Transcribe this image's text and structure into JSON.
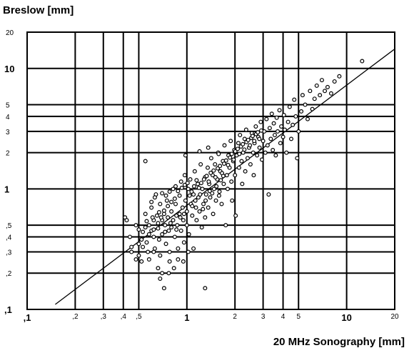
{
  "chart_data": {
    "type": "scatter",
    "title": "",
    "xlabel": "20 MHz Sonography [mm]",
    "ylabel": "Breslow [mm]",
    "xscale": "log",
    "yscale": "log",
    "xlim": [
      0.1,
      20
    ],
    "ylim": [
      0.1,
      20
    ],
    "grid": true,
    "x_ticks": [
      {
        "value": 0.1,
        "label": ",1",
        "major": true
      },
      {
        "value": 0.2,
        "label": ",2",
        "major": false
      },
      {
        "value": 0.3,
        "label": ",3",
        "major": false
      },
      {
        "value": 0.4,
        "label": ",4",
        "major": false
      },
      {
        "value": 0.5,
        "label": ",5",
        "major": false
      },
      {
        "value": 1,
        "label": "1",
        "major": true
      },
      {
        "value": 2,
        "label": "2",
        "major": false
      },
      {
        "value": 3,
        "label": "3",
        "major": false
      },
      {
        "value": 4,
        "label": "4",
        "major": false
      },
      {
        "value": 5,
        "label": "5",
        "major": false
      },
      {
        "value": 10,
        "label": "10",
        "major": true
      },
      {
        "value": 20,
        "label": "20",
        "major": false
      }
    ],
    "y_ticks": [
      {
        "value": 0.1,
        "label": ",1",
        "major": true
      },
      {
        "value": 0.2,
        "label": ",2",
        "major": false
      },
      {
        "value": 0.3,
        "label": ",3",
        "major": false
      },
      {
        "value": 0.4,
        "label": ",4",
        "major": false
      },
      {
        "value": 0.5,
        "label": ",5",
        "major": false
      },
      {
        "value": 1,
        "label": "1",
        "major": true
      },
      {
        "value": 2,
        "label": "2",
        "major": false
      },
      {
        "value": 3,
        "label": "3",
        "major": false
      },
      {
        "value": 4,
        "label": "4",
        "major": false
      },
      {
        "value": 5,
        "label": "5",
        "major": false
      },
      {
        "value": 10,
        "label": "10",
        "major": true
      },
      {
        "value": 20,
        "label": "20",
        "major": false
      }
    ],
    "reference_line": {
      "x": [
        0.15,
        20
      ],
      "y": [
        0.11,
        14.5
      ]
    },
    "points": [
      [
        0.41,
        0.58
      ],
      [
        0.42,
        0.55
      ],
      [
        0.44,
        0.4
      ],
      [
        0.45,
        0.33
      ],
      [
        0.48,
        0.5
      ],
      [
        0.5,
        0.46
      ],
      [
        0.52,
        0.25
      ],
      [
        0.53,
        0.44
      ],
      [
        0.5,
        0.28
      ],
      [
        0.55,
        0.48
      ],
      [
        0.55,
        0.62
      ],
      [
        0.56,
        0.36
      ],
      [
        0.57,
        0.3
      ],
      [
        0.58,
        0.5
      ],
      [
        0.6,
        0.7
      ],
      [
        0.6,
        0.45
      ],
      [
        0.62,
        0.55
      ],
      [
        0.62,
        0.4
      ],
      [
        0.63,
        0.32
      ],
      [
        0.64,
        0.9
      ],
      [
        0.65,
        0.6
      ],
      [
        0.66,
        0.47
      ],
      [
        0.67,
        0.38
      ],
      [
        0.68,
        0.28
      ],
      [
        0.68,
        0.75
      ],
      [
        0.7,
        0.55
      ],
      [
        0.7,
        0.42
      ],
      [
        0.72,
        0.62
      ],
      [
        0.73,
        0.5
      ],
      [
        0.74,
        0.35
      ],
      [
        0.75,
        0.8
      ],
      [
        0.76,
        0.58
      ],
      [
        0.77,
        0.45
      ],
      [
        0.78,
        0.3
      ],
      [
        0.78,
        0.25
      ],
      [
        0.8,
        0.65
      ],
      [
        0.8,
        0.48
      ],
      [
        0.82,
        1.0
      ],
      [
        0.82,
        0.55
      ],
      [
        0.84,
        0.4
      ],
      [
        0.85,
        0.75
      ],
      [
        0.86,
        0.6
      ],
      [
        0.87,
        0.5
      ],
      [
        0.88,
        0.32
      ],
      [
        0.9,
        0.88
      ],
      [
        0.9,
        0.62
      ],
      [
        0.92,
        1.15
      ],
      [
        0.92,
        0.45
      ],
      [
        0.94,
        0.7
      ],
      [
        0.95,
        0.55
      ],
      [
        0.96,
        0.36
      ],
      [
        0.97,
        1.3
      ],
      [
        0.98,
        0.8
      ],
      [
        1.0,
        0.65
      ],
      [
        1.0,
        0.5
      ],
      [
        1.02,
        1.0
      ],
      [
        1.03,
        0.42
      ],
      [
        1.05,
        1.2
      ],
      [
        1.06,
        0.75
      ],
      [
        1.08,
        0.6
      ],
      [
        1.1,
        0.9
      ],
      [
        1.1,
        0.32
      ],
      [
        1.12,
        1.4
      ],
      [
        1.14,
        0.7
      ],
      [
        1.15,
        0.55
      ],
      [
        1.17,
        1.1
      ],
      [
        1.18,
        0.85
      ],
      [
        1.2,
        0.65
      ],
      [
        1.22,
        1.6
      ],
      [
        1.24,
        0.48
      ],
      [
        1.25,
        1.0
      ],
      [
        1.27,
        0.75
      ],
      [
        1.3,
        1.25
      ],
      [
        1.3,
        0.58
      ],
      [
        1.32,
        0.9
      ],
      [
        1.35,
        1.5
      ],
      [
        1.36,
        0.7
      ],
      [
        1.38,
        1.1
      ],
      [
        1.4,
        0.85
      ],
      [
        1.42,
        1.8
      ],
      [
        1.45,
        1.3
      ],
      [
        1.46,
        0.62
      ],
      [
        1.48,
        1.0
      ],
      [
        1.5,
        1.6
      ],
      [
        1.52,
        0.8
      ],
      [
        1.55,
        1.2
      ],
      [
        1.57,
        2.0
      ],
      [
        1.6,
        0.95
      ],
      [
        1.62,
        1.4
      ],
      [
        1.65,
        0.75
      ],
      [
        1.68,
        1.7
      ],
      [
        1.7,
        1.1
      ],
      [
        1.72,
        2.3
      ],
      [
        1.75,
        0.5
      ],
      [
        1.78,
        1.3
      ],
      [
        1.8,
        1.0
      ],
      [
        1.82,
        1.9
      ],
      [
        1.85,
        1.5
      ],
      [
        1.88,
        2.5
      ],
      [
        1.9,
        1.15
      ],
      [
        1.92,
        0.8
      ],
      [
        1.95,
        1.7
      ],
      [
        1.98,
        2.1
      ],
      [
        2.0,
        1.3
      ],
      [
        2.02,
        0.6
      ],
      [
        2.05,
        1.9
      ],
      [
        2.1,
        2.4
      ],
      [
        2.12,
        1.5
      ],
      [
        2.15,
        2.8
      ],
      [
        2.2,
        1.7
      ],
      [
        2.22,
        1.1
      ],
      [
        2.25,
        2.0
      ],
      [
        2.3,
        2.6
      ],
      [
        2.32,
        1.4
      ],
      [
        2.35,
        3.1
      ],
      [
        2.4,
        1.8
      ],
      [
        2.45,
        2.2
      ],
      [
        2.5,
        1.6
      ],
      [
        2.55,
        2.9
      ],
      [
        2.6,
        2.0
      ],
      [
        2.62,
        1.3
      ],
      [
        2.65,
        2.4
      ],
      [
        2.7,
        3.3
      ],
      [
        2.75,
        1.9
      ],
      [
        2.8,
        2.7
      ],
      [
        2.85,
        2.2
      ],
      [
        2.9,
        3.6
      ],
      [
        2.95,
        1.75
      ],
      [
        3.0,
        2.5
      ],
      [
        3.05,
        3.0
      ],
      [
        3.1,
        2.0
      ],
      [
        3.15,
        3.8
      ],
      [
        3.2,
        2.3
      ],
      [
        3.25,
        0.9
      ],
      [
        3.3,
        3.2
      ],
      [
        3.35,
        2.6
      ],
      [
        3.4,
        4.2
      ],
      [
        3.45,
        2.1
      ],
      [
        3.5,
        3.5
      ],
      [
        3.55,
        2.8
      ],
      [
        3.6,
        1.9
      ],
      [
        3.65,
        3.9
      ],
      [
        3.7,
        3.0
      ],
      [
        3.8,
        4.5
      ],
      [
        3.85,
        2.4
      ],
      [
        3.9,
        3.3
      ],
      [
        4.0,
        2.7
      ],
      [
        4.05,
        4.1
      ],
      [
        4.1,
        3.1
      ],
      [
        4.2,
        2.0
      ],
      [
        4.3,
        3.6
      ],
      [
        4.4,
        4.8
      ],
      [
        4.5,
        2.6
      ],
      [
        4.6,
        3.4
      ],
      [
        4.7,
        5.5
      ],
      [
        4.8,
        4.0
      ],
      [
        4.9,
        1.8
      ],
      [
        5.0,
        3.0
      ],
      [
        5.2,
        4.4
      ],
      [
        5.3,
        6.0
      ],
      [
        5.5,
        5.0
      ],
      [
        5.7,
        3.8
      ],
      [
        5.9,
        6.5
      ],
      [
        6.1,
        4.6
      ],
      [
        6.3,
        5.6
      ],
      [
        6.5,
        7.2
      ],
      [
        6.8,
        6.0
      ],
      [
        7.0,
        8.0
      ],
      [
        7.3,
        6.5
      ],
      [
        7.6,
        7.0
      ],
      [
        8.0,
        6.2
      ],
      [
        8.4,
        7.8
      ],
      [
        9.0,
        8.6
      ],
      [
        12.5,
        11.5
      ],
      [
        0.6,
        0.78
      ],
      [
        0.63,
        0.85
      ],
      [
        0.7,
        0.92
      ],
      [
        0.74,
        0.88
      ],
      [
        0.78,
        0.95
      ],
      [
        0.85,
        1.05
      ],
      [
        0.52,
        0.38
      ],
      [
        0.58,
        0.42
      ],
      [
        0.62,
        0.46
      ],
      [
        0.66,
        0.52
      ],
      [
        0.69,
        0.58
      ],
      [
        0.72,
        0.66
      ],
      [
        0.76,
        0.72
      ],
      [
        0.8,
        0.78
      ],
      [
        0.84,
        0.83
      ],
      [
        0.88,
        0.96
      ],
      [
        0.93,
        1.02
      ],
      [
        0.97,
        1.08
      ],
      [
        1.01,
        1.12
      ],
      [
        1.04,
        0.88
      ],
      [
        1.07,
        0.95
      ],
      [
        1.11,
        1.05
      ],
      [
        1.15,
        1.18
      ],
      [
        1.19,
        1.02
      ],
      [
        1.23,
        1.12
      ],
      [
        1.28,
        1.2
      ],
      [
        1.33,
        1.28
      ],
      [
        1.37,
        1.15
      ],
      [
        1.41,
        1.36
      ],
      [
        1.47,
        1.42
      ],
      [
        1.51,
        1.25
      ],
      [
        1.56,
        1.48
      ],
      [
        1.61,
        1.55
      ],
      [
        1.66,
        1.35
      ],
      [
        1.71,
        1.62
      ],
      [
        1.76,
        1.72
      ],
      [
        1.81,
        1.58
      ],
      [
        1.86,
        1.82
      ],
      [
        1.91,
        1.95
      ],
      [
        1.96,
        1.75
      ],
      [
        2.01,
        2.05
      ],
      [
        2.08,
        2.15
      ],
      [
        2.13,
        1.95
      ],
      [
        2.18,
        2.25
      ],
      [
        2.24,
        2.35
      ],
      [
        2.29,
        2.12
      ],
      [
        2.36,
        2.45
      ],
      [
        2.42,
        2.55
      ],
      [
        2.48,
        2.3
      ],
      [
        2.53,
        2.65
      ],
      [
        2.58,
        2.75
      ],
      [
        2.64,
        2.5
      ],
      [
        2.71,
        2.85
      ],
      [
        2.78,
        2.95
      ],
      [
        2.84,
        2.6
      ],
      [
        2.92,
        3.05
      ],
      [
        0.45,
        0.3
      ],
      [
        0.48,
        0.26
      ],
      [
        0.53,
        0.33
      ],
      [
        0.58,
        0.26
      ],
      [
        0.62,
        0.3
      ],
      [
        0.66,
        0.22
      ],
      [
        0.7,
        0.2
      ],
      [
        0.72,
        0.15
      ],
      [
        0.68,
        0.18
      ],
      [
        0.77,
        0.2
      ],
      [
        0.83,
        0.22
      ],
      [
        0.88,
        0.26
      ],
      [
        0.95,
        0.25
      ],
      [
        1.02,
        0.3
      ],
      [
        1.3,
        0.15
      ],
      [
        0.55,
        1.7
      ],
      [
        0.98,
        1.9
      ],
      [
        1.2,
        2.05
      ],
      [
        1.36,
        2.2
      ],
      [
        1.58,
        1.95
      ],
      [
        0.5,
        0.35
      ],
      [
        0.56,
        0.54
      ],
      [
        0.61,
        0.58
      ],
      [
        0.67,
        0.64
      ],
      [
        0.73,
        0.44
      ],
      [
        0.79,
        0.52
      ],
      [
        0.86,
        0.46
      ],
      [
        0.91,
        0.58
      ],
      [
        0.96,
        0.62
      ],
      [
        1.08,
        0.72
      ],
      [
        1.13,
        0.8
      ],
      [
        1.21,
        0.9
      ],
      [
        1.26,
        0.68
      ],
      [
        1.31,
        0.8
      ],
      [
        1.39,
        0.96
      ],
      [
        1.44,
        0.92
      ],
      [
        1.53,
        1.05
      ],
      [
        1.59,
        0.88
      ],
      [
        1.63,
        1.18
      ],
      [
        1.69,
        1.28
      ]
    ]
  }
}
